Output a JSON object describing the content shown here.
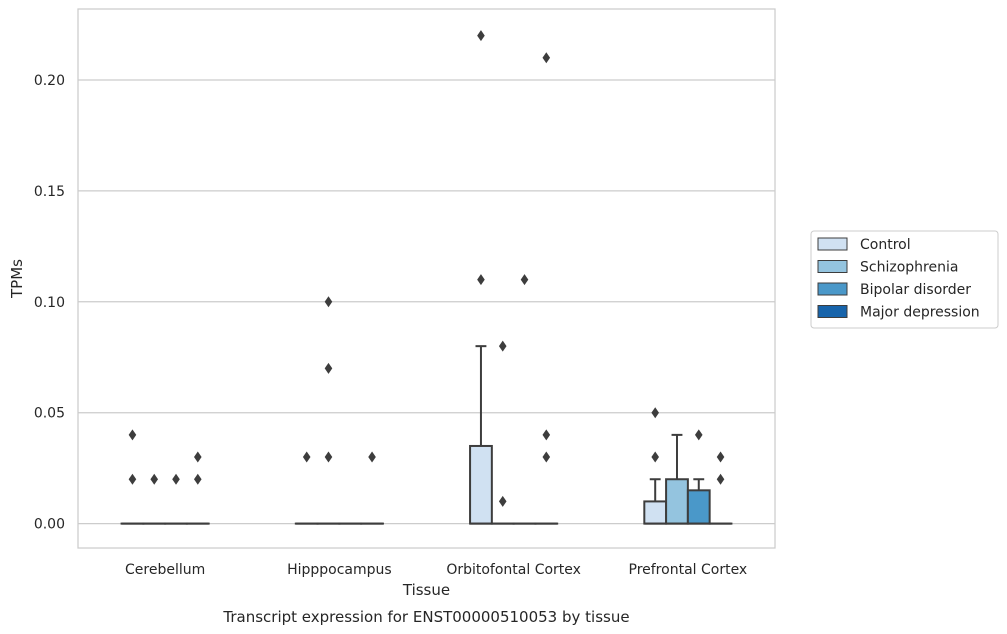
{
  "chart_data": {
    "type": "box",
    "title": "Transcript expression for ENST00000510053 by tissue",
    "xlabel": "Tissue",
    "ylabel": "TPMs",
    "ylim": [
      -0.011,
      0.232
    ],
    "yticks": [
      "0.00",
      "0.05",
      "0.10",
      "0.15",
      "0.20"
    ],
    "ytick_values": [
      0,
      0.05,
      0.1,
      0.15,
      0.2
    ],
    "grid": true,
    "legend_position": "right",
    "categories": [
      "Cerebellum",
      "Hipppocampus",
      "Orbitofontal Cortex",
      "Prefrontal Cortex"
    ],
    "series": [
      {
        "name": "Control",
        "color": "#d0e1f2"
      },
      {
        "name": "Schizophrenia",
        "color": "#94c4df"
      },
      {
        "name": "Bipolar disorder",
        "color": "#4a98c9"
      },
      {
        "name": "Major depression",
        "color": "#1764ab"
      }
    ],
    "boxes": [
      {
        "category": 0,
        "series": 0,
        "q1": 0,
        "median": 0,
        "q3": 0,
        "whisker_low": 0,
        "whisker_high": 0,
        "outliers": [
          0.02,
          0.04
        ]
      },
      {
        "category": 0,
        "series": 1,
        "q1": 0,
        "median": 0,
        "q3": 0,
        "whisker_low": 0,
        "whisker_high": 0,
        "outliers": [
          0.02
        ]
      },
      {
        "category": 0,
        "series": 2,
        "q1": 0,
        "median": 0,
        "q3": 0,
        "whisker_low": 0,
        "whisker_high": 0,
        "outliers": [
          0.02
        ]
      },
      {
        "category": 0,
        "series": 3,
        "q1": 0,
        "median": 0,
        "q3": 0,
        "whisker_low": 0,
        "whisker_high": 0,
        "outliers": [
          0.02,
          0.03
        ]
      },
      {
        "category": 1,
        "series": 0,
        "q1": 0,
        "median": 0,
        "q3": 0,
        "whisker_low": 0,
        "whisker_high": 0,
        "outliers": [
          0.03
        ]
      },
      {
        "category": 1,
        "series": 1,
        "q1": 0,
        "median": 0,
        "q3": 0,
        "whisker_low": 0,
        "whisker_high": 0,
        "outliers": [
          0.03,
          0.07,
          0.1
        ]
      },
      {
        "category": 1,
        "series": 2,
        "q1": 0,
        "median": 0,
        "q3": 0,
        "whisker_low": 0,
        "whisker_high": 0,
        "outliers": []
      },
      {
        "category": 1,
        "series": 3,
        "q1": 0,
        "median": 0,
        "q3": 0,
        "whisker_low": 0,
        "whisker_high": 0,
        "outliers": [
          0.03
        ]
      },
      {
        "category": 2,
        "series": 0,
        "q1": 0,
        "median": 0,
        "q3": 0.035,
        "whisker_low": 0,
        "whisker_high": 0.08,
        "outliers": [
          0.11,
          0.22
        ]
      },
      {
        "category": 2,
        "series": 1,
        "q1": 0,
        "median": 0,
        "q3": 0,
        "whisker_low": 0,
        "whisker_high": 0,
        "outliers": [
          0.01,
          0.08
        ]
      },
      {
        "category": 2,
        "series": 2,
        "q1": 0,
        "median": 0,
        "q3": 0,
        "whisker_low": 0,
        "whisker_high": 0,
        "outliers": [
          0.11
        ]
      },
      {
        "category": 2,
        "series": 3,
        "q1": 0,
        "median": 0,
        "q3": 0,
        "whisker_low": 0,
        "whisker_high": 0,
        "outliers": [
          0.03,
          0.04,
          0.21
        ]
      },
      {
        "category": 3,
        "series": 0,
        "q1": 0,
        "median": 0,
        "q3": 0.01,
        "whisker_low": 0,
        "whisker_high": 0.02,
        "outliers": [
          0.03,
          0.05
        ]
      },
      {
        "category": 3,
        "series": 1,
        "q1": 0,
        "median": 0,
        "q3": 0.02,
        "whisker_low": 0,
        "whisker_high": 0.04,
        "outliers": []
      },
      {
        "category": 3,
        "series": 2,
        "q1": 0,
        "median": 0,
        "q3": 0.015,
        "whisker_low": 0,
        "whisker_high": 0.02,
        "outliers": [
          0.04
        ]
      },
      {
        "category": 3,
        "series": 3,
        "q1": 0,
        "median": 0,
        "q3": 0,
        "whisker_low": 0,
        "whisker_high": 0,
        "outliers": [
          0.02,
          0.03
        ]
      }
    ]
  }
}
